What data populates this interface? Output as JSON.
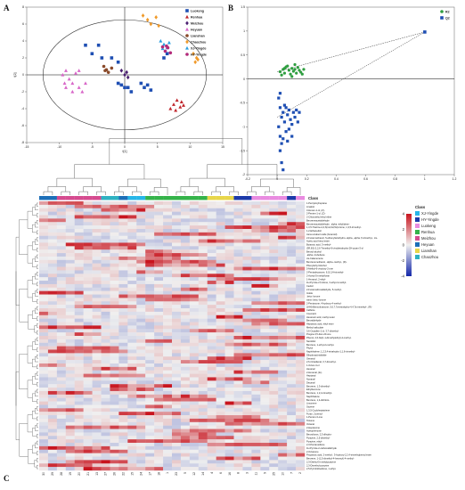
{
  "panels": {
    "a": "A",
    "b": "B",
    "c": "C"
  },
  "colors": {
    "Luokeng": "#1f4fb3",
    "Renhua": "#c0262c",
    "Meizhou": "#4a1f70",
    "Heyuan": "#d866c8",
    "Lianshan": "#8a4a2a",
    "Chaozhou": "#f09a2a",
    "XJ-Yingde": "#2a9ee0",
    "HY-Yingde": "#b22a7a",
    "R2": "#2f9e40",
    "Q2": "#1f4fb3"
  },
  "chart_data": [
    {
      "type": "scatter",
      "panel": "A",
      "xlabel": "t[1]",
      "ylabel": "t[2]",
      "xlim": [
        -15,
        15
      ],
      "ylim": [
        -8,
        8
      ],
      "xticks": [
        "-15",
        "-10",
        "-5",
        "0",
        "5",
        "10",
        "15"
      ],
      "yticks": [
        "-8",
        "-6",
        "-4",
        "-2",
        "0",
        "2",
        "4",
        "6",
        "8"
      ],
      "ellipse": {
        "rx": 12.5,
        "ry": 6.5
      },
      "legend": [
        "Luokeng",
        "Renhua",
        "Meizhou",
        "Heyuan",
        "Lianshan",
        "Chaozhou",
        "XJ-Yingde",
        "HY-Yingde"
      ],
      "legend_position": "top-right",
      "series": [
        {
          "name": "Luokeng",
          "marker": "square",
          "points": [
            [
              2.5,
              -1
            ],
            [
              3,
              -1.5
            ],
            [
              3.5,
              -1.2
            ],
            [
              4,
              -1.8
            ],
            [
              1,
              -2
            ],
            [
              -4,
              3.5
            ],
            [
              -5,
              2.5
            ],
            [
              -3.5,
              2
            ],
            [
              -2,
              2
            ],
            [
              -1,
              1.5
            ],
            [
              0.5,
              -1.5
            ],
            [
              0,
              -1.5
            ],
            [
              -1,
              -1
            ],
            [
              6,
              2
            ],
            [
              6.5,
              2.5
            ],
            [
              -6,
              3.5
            ],
            [
              -0.5,
              -1.2
            ]
          ]
        },
        {
          "name": "Renhua",
          "marker": "triangle",
          "points": [
            [
              7.5,
              -3.5
            ],
            [
              8,
              -3
            ],
            [
              8.5,
              -3.8
            ],
            [
              7,
              -4
            ],
            [
              8.7,
              -3.2
            ],
            [
              9,
              -3.6
            ],
            [
              7.8,
              -4.2
            ]
          ]
        },
        {
          "name": "Meizhou",
          "marker": "diamond",
          "points": [
            [
              0,
              0
            ],
            [
              -0.5,
              0.5
            ],
            [
              0.5,
              -0.3
            ],
            [
              0.3,
              0.3
            ]
          ]
        },
        {
          "name": "Heyuan",
          "marker": "triangle",
          "points": [
            [
              -9,
              -1.5
            ],
            [
              -8.5,
              -0.5
            ],
            [
              -8,
              -1
            ],
            [
              -7,
              -1.5
            ],
            [
              -6,
              -1
            ],
            [
              -9.5,
              0
            ],
            [
              -9,
              0.5
            ],
            [
              -7.5,
              0.2
            ],
            [
              -6.5,
              -2
            ],
            [
              -7,
              0.5
            ],
            [
              -8,
              -2
            ],
            [
              -9.2,
              -1
            ]
          ]
        },
        {
          "name": "Lianshan",
          "marker": "circle",
          "points": [
            [
              -3,
              0.5
            ],
            [
              -2.5,
              0.3
            ],
            [
              -2,
              0.8
            ],
            [
              -3.2,
              1
            ],
            [
              -2.8,
              0.6
            ]
          ]
        },
        {
          "name": "Chaozhou",
          "marker": "diamond",
          "points": [
            [
              2.8,
              7
            ],
            [
              3.5,
              6.5
            ],
            [
              4,
              6
            ],
            [
              4.8,
              6.8
            ],
            [
              5.2,
              5.8
            ],
            [
              10.5,
              2.5
            ],
            [
              11,
              2
            ],
            [
              10.8,
              1.5
            ],
            [
              11.2,
              1.8
            ]
          ]
        },
        {
          "name": "XJ-Yingde",
          "marker": "triangle",
          "points": [
            [
              5.5,
              4
            ],
            [
              6,
              3.6
            ],
            [
              6.5,
              3.2
            ],
            [
              5.8,
              3.1
            ],
            [
              6.8,
              3.8
            ]
          ]
        },
        {
          "name": "HY-Yingde",
          "marker": "circle",
          "points": [
            [
              6.2,
              2.8
            ],
            [
              6.6,
              3.2
            ],
            [
              7,
              2.6
            ],
            [
              6.4,
              3.4
            ],
            [
              5.8,
              3.3
            ]
          ]
        }
      ]
    },
    {
      "type": "scatter",
      "panel": "B",
      "xlim": [
        -0.2,
        1.2
      ],
      "ylim": [
        -2,
        1.5
      ],
      "xticks": [
        "-0.2",
        "0",
        "0.2",
        "0.4",
        "0.6",
        "0.8",
        "1",
        "1.2"
      ],
      "yticks": [
        "-2",
        "-1.5",
        "-1",
        "-0.5",
        "0",
        "0.5",
        "1",
        "1.5"
      ],
      "legend": [
        "R2",
        "Q2"
      ],
      "legend_position": "top-right",
      "anchor_points": {
        "R2": [
          1,
          0.98
        ],
        "Q2": [
          1,
          0.98
        ]
      },
      "R2_intercept": [
        0,
        0.15
      ],
      "Q2_intercept": [
        0,
        -0.8
      ],
      "series": [
        {
          "name": "R2",
          "marker": "circle",
          "points": [
            [
              0.02,
              0.15
            ],
            [
              0.04,
              0.2
            ],
            [
              0.05,
              0.12
            ],
            [
              0.06,
              0.25
            ],
            [
              0.08,
              0.18
            ],
            [
              0.09,
              0.1
            ],
            [
              0.1,
              0.22
            ],
            [
              0.11,
              0.16
            ],
            [
              0.12,
              0.2
            ],
            [
              0.13,
              0.12
            ],
            [
              0.14,
              0.24
            ],
            [
              0.15,
              0.18
            ],
            [
              0.16,
              0.14
            ],
            [
              0.18,
              0.2
            ],
            [
              0.03,
              0.08
            ],
            [
              0.07,
              0.27
            ],
            [
              0.1,
              0.05
            ],
            [
              0.12,
              0.3
            ],
            [
              0.17,
              0.1
            ],
            [
              0.05,
              0.22
            ]
          ]
        },
        {
          "name": "Q2",
          "marker": "square",
          "points": [
            [
              0.01,
              -0.4
            ],
            [
              0.02,
              -0.6
            ],
            [
              0.03,
              -0.8
            ],
            [
              0.01,
              -1
            ],
            [
              0.02,
              -1.2
            ],
            [
              0.03,
              -1.35
            ],
            [
              0.04,
              -0.7
            ],
            [
              0.05,
              -0.9
            ],
            [
              0.06,
              -1.1
            ],
            [
              0.07,
              -0.75
            ],
            [
              0.08,
              -1.05
            ],
            [
              0.09,
              -0.85
            ],
            [
              0.1,
              -0.95
            ],
            [
              0.11,
              -0.7
            ],
            [
              0.12,
              -0.8
            ],
            [
              0.13,
              -0.65
            ],
            [
              0.14,
              -0.9
            ],
            [
              0.15,
              -0.7
            ],
            [
              0.02,
              -1.5
            ],
            [
              0.03,
              -1.75
            ],
            [
              0.04,
              -1.25
            ],
            [
              0.05,
              -0.55
            ],
            [
              0.06,
              -0.6
            ],
            [
              0.07,
              -1.3
            ],
            [
              0.08,
              -0.65
            ],
            [
              0.1,
              -1.2
            ],
            [
              0.02,
              -0.3
            ],
            [
              0.04,
              -1.9
            ]
          ]
        }
      ]
    },
    {
      "type": "heatmap",
      "panel": "C",
      "color_scale": {
        "min": -4,
        "max": 4,
        "ticks": [
          "4",
          "2",
          "0",
          "-2",
          "-4"
        ]
      },
      "legend_title": "Class",
      "classes": [
        "XJ-Yingde",
        "HY-Yingde",
        "Luokeng",
        "Renhua",
        "Meizhou",
        "Heyuan",
        "Lianshan",
        "Chaozhou"
      ],
      "class_colors": [
        "#27b6e8",
        "#1c3aa9",
        "#e98be0",
        "#35b34a",
        "#d54b8f",
        "#1d6fb8",
        "#e8d64a",
        "#2fb2c2"
      ],
      "columns": [
        "30",
        "29",
        "28",
        "19",
        "20",
        "21",
        "13",
        "27",
        "26",
        "22",
        "15",
        "24",
        "17",
        "18",
        "1",
        "23",
        "5",
        "12",
        "14",
        "4",
        "6",
        "16",
        "8",
        "3",
        "11",
        "9",
        "25",
        "10",
        "7",
        "2"
      ],
      "column_classes": [
        5,
        5,
        4,
        4,
        4,
        4,
        4,
        7,
        7,
        5,
        0,
        0,
        3,
        3,
        3,
        3,
        3,
        3,
        3,
        6,
        6,
        6,
        1,
        1,
        2,
        2,
        2,
        2,
        1,
        2
      ],
      "rows": [
        "1-Pentyloxyheptane",
        "Linalool",
        "3-Hexen-1-ol, (Z)-",
        "2-Penten-1-ol, (Z)-",
        "2-Chloroethyl ethyl ether",
        "Benzeneacetaldehyde",
        "Benzeneacetaldehyde, .alpha.-ethylidene-",
        "1,3,5-Triazine-2,4,6(1H,3H,5H)-trione, 1,3,5-trimethyl-",
        "1,2-Ethanediol",
        "trans-Linalool oxide (furanoid)",
        "2-Furanmethanol, 5-ethenyltetrahydro-.alpha.,.alpha.,5-trimethyl-, cis-",
        "Acetic acid hexyl ester",
        "Butanoic acid, 3-methyl-",
        "(3R,6S)-2,2,6-Trimethyl-6-vinyltetrahydro-2H-pyran-3-ol",
        "Benzyl alcohol",
        ".alpha.-Cubebene",
        "cis-Calamenene",
        "Benzenemethanol, .alpha.-methyl-, (R)-",
        "Phenylethyl Alcohol",
        "5-Methyl-6-vinyloxy-2-one",
        "2-Pentadecanone, 6,10,14-trimethyl-",
        "2-Acetyl-5-methylfuran",
        "1-Hexanol, 2-ethyl-",
        "1H-Pyrrole-2,5-dione, 3-ethyl-4-methyl-",
        "Cedrol",
        "2-Furancarboxaldehyde, 5-methyl-",
        "Indole",
        ".beta.-Ionone",
        "trans-.beta.-Ionone",
        "2-Pentanone, 4-hydroxy-4-methyl-",
        "2(4H)-Benzofuranone, 5,6,7,7a-tetrahydro-4,4,7a-trimethyl-, (R)-",
        "Caffeine",
        "Coumarin",
        "Hexanoic acid, methyl ester",
        "Benzaldehyde",
        "Heptanoic acid, ethyl ester",
        "Methyl salicylate",
        "3,6-Octadien-1-ol, 3,7-dimethyl-",
        "Pregna-3,5-dien-20-one",
        "Phenol, 2,6-bis(1,1-dimethylethyl)-4-methyl-",
        "Nerolidol",
        "Benzene, 1-ethyl-2-methyl-",
        "Phytol",
        "Naphthalene, 1,2,3,4-tetrahydro-1,1,6-trimethyl-",
        "Dihydroactinidiolide",
        "Geraniol",
        "2,6-Octadienal, 3,7-dimethyl-",
        "1-Octen-3-ol",
        "Hexanal",
        "2-Hexenal, (E)-",
        "Heptanal",
        "Nonanal",
        "Decanal",
        "Benzene, 1,3-dimethyl-",
        "Ethylbenzene",
        "Benzene, 1,2,4-trimethyl-",
        "Naphthalene",
        "Benzene, 1,4-dichloro-",
        "Limonene",
        "Styrene",
        "1,3,5-Cycloheptatriene",
        "Furan, 2-pentyl-",
        "1-Penten-3-one",
        "Toluene",
        "Octanal",
        "2-Heptanone",
        "Acetophenone",
        "Benzofuran, 2,3-dihydro-",
        "Pyrazine, 2,5-dimethyl-",
        "Pyrazine, ethyl-",
        "2,3-Pentanedione",
        "1H-Pyrrole-2-carboxaldehyde",
        "2-Octanone",
        "Propanoic acid, 2-methyl-, 3-hydroxy-2,2,4-trimethylpentyl ester",
        "Benzene, 1-(1,5-dimethyl-4-hexenyl)-4-methyl-",
        "2,3-Diethyl-5-methylpyrazine",
        "2,3-Dimethyl-pyrazine",
        "2,5-Pyrrolidinedione, 1-ethyl-"
      ],
      "values": "generated"
    }
  ]
}
